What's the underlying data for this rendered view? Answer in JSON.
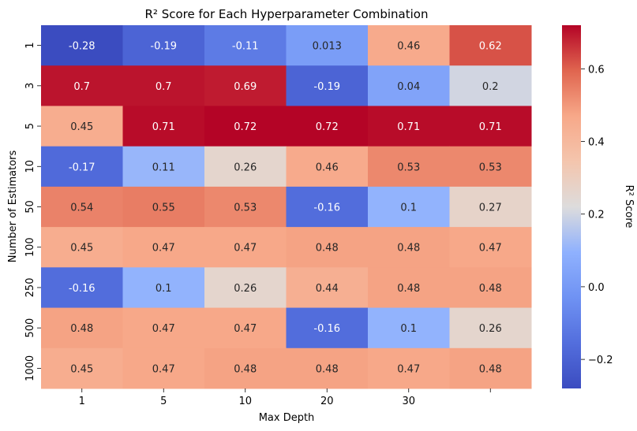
{
  "chart_data": {
    "type": "heatmap",
    "title": "R² Score for Each Hyperparameter Combination",
    "xlabel": "Max Depth",
    "ylabel": "Number of Estimators",
    "x_categories": [
      "1",
      "5",
      "10",
      "20",
      "30",
      ""
    ],
    "y_categories": [
      "1",
      "3",
      "5",
      "10",
      "50",
      "100",
      "250",
      "500",
      "1000"
    ],
    "values": [
      [
        -0.28,
        -0.19,
        -0.11,
        0.013,
        0.46,
        0.62
      ],
      [
        0.7,
        0.7,
        0.69,
        -0.19,
        0.04,
        0.2
      ],
      [
        0.45,
        0.71,
        0.72,
        0.72,
        0.71,
        0.71
      ],
      [
        -0.17,
        0.11,
        0.26,
        0.46,
        0.53,
        0.53
      ],
      [
        0.54,
        0.55,
        0.53,
        -0.16,
        0.1,
        0.27
      ],
      [
        0.45,
        0.47,
        0.47,
        0.48,
        0.48,
        0.47
      ],
      [
        -0.16,
        0.1,
        0.26,
        0.44,
        0.48,
        0.48
      ],
      [
        0.48,
        0.47,
        0.47,
        -0.16,
        0.1,
        0.26
      ],
      [
        0.45,
        0.47,
        0.48,
        0.48,
        0.47,
        0.48
      ]
    ],
    "value_labels": [
      [
        "-0.28",
        "-0.19",
        "-0.11",
        "0.013",
        "0.46",
        "0.62"
      ],
      [
        "0.7",
        "0.7",
        "0.69",
        "-0.19",
        "0.04",
        "0.2"
      ],
      [
        "0.45",
        "0.71",
        "0.72",
        "0.72",
        "0.71",
        "0.71"
      ],
      [
        "-0.17",
        "0.11",
        "0.26",
        "0.46",
        "0.53",
        "0.53"
      ],
      [
        "0.54",
        "0.55",
        "0.53",
        "-0.16",
        "0.1",
        "0.27"
      ],
      [
        "0.45",
        "0.47",
        "0.47",
        "0.48",
        "0.48",
        "0.47"
      ],
      [
        "-0.16",
        "0.1",
        "0.26",
        "0.44",
        "0.48",
        "0.48"
      ],
      [
        "0.48",
        "0.47",
        "0.47",
        "-0.16",
        "0.1",
        "0.26"
      ],
      [
        "0.45",
        "0.47",
        "0.48",
        "0.48",
        "0.47",
        "0.48"
      ]
    ],
    "colormap": "coolwarm",
    "vmin": -0.28,
    "vmax": 0.72,
    "colorbar": {
      "label": "R² Score",
      "ticks": [
        -0.2,
        0.0,
        0.2,
        0.4,
        0.6
      ],
      "tick_labels": [
        "−0.2",
        "0.0",
        "0.2",
        "0.4",
        "0.6"
      ]
    },
    "grid": false,
    "legend": "colorbar-right"
  }
}
